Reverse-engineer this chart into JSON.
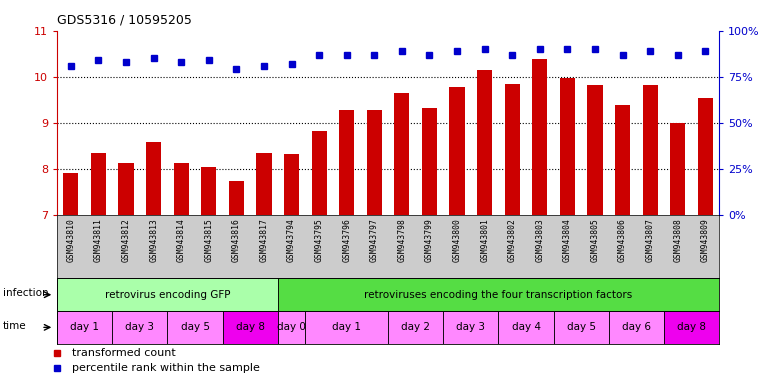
{
  "title": "GDS5316 / 10595205",
  "samples": [
    "GSM943810",
    "GSM943811",
    "GSM943812",
    "GSM943813",
    "GSM943814",
    "GSM943815",
    "GSM943816",
    "GSM943817",
    "GSM943794",
    "GSM943795",
    "GSM943796",
    "GSM943797",
    "GSM943798",
    "GSM943799",
    "GSM943800",
    "GSM943801",
    "GSM943802",
    "GSM943803",
    "GSM943804",
    "GSM943805",
    "GSM943806",
    "GSM943807",
    "GSM943808",
    "GSM943809"
  ],
  "transformed_count": [
    7.92,
    8.35,
    8.12,
    8.58,
    8.12,
    8.04,
    7.73,
    8.35,
    8.32,
    8.82,
    9.28,
    9.28,
    9.65,
    9.32,
    9.78,
    10.15,
    9.85,
    10.38,
    9.98,
    9.83,
    9.38,
    9.83,
    8.99,
    9.55
  ],
  "percentile_rank_pct": [
    81,
    84,
    83,
    85,
    83,
    84,
    79,
    81,
    82,
    87,
    87,
    87,
    89,
    87,
    89,
    90,
    87,
    90,
    90,
    90,
    87,
    89,
    87,
    89
  ],
  "bar_color": "#cc0000",
  "dot_color": "#0000cc",
  "ylim_left": [
    7,
    11
  ],
  "yticks_left": [
    7,
    8,
    9,
    10,
    11
  ],
  "ylim_right": [
    0,
    100
  ],
  "yticks_right": [
    0,
    25,
    50,
    75,
    100
  ],
  "ytick_right_labels": [
    "0%",
    "25%",
    "50%",
    "75%",
    "100%"
  ],
  "grid_values": [
    8,
    9,
    10
  ],
  "infection_groups": [
    {
      "label": "retrovirus encoding GFP",
      "start": 0,
      "end": 8,
      "color": "#aaffaa"
    },
    {
      "label": "retroviruses encoding the four transcription factors",
      "start": 8,
      "end": 24,
      "color": "#55dd44"
    }
  ],
  "time_groups": [
    {
      "label": "day 1",
      "start": 0,
      "end": 2,
      "color": "#ff88ff"
    },
    {
      "label": "day 3",
      "start": 2,
      "end": 4,
      "color": "#ff88ff"
    },
    {
      "label": "day 5",
      "start": 4,
      "end": 6,
      "color": "#ff88ff"
    },
    {
      "label": "day 8",
      "start": 6,
      "end": 8,
      "color": "#ee00ee"
    },
    {
      "label": "day 0",
      "start": 8,
      "end": 9,
      "color": "#ff88ff"
    },
    {
      "label": "day 1",
      "start": 9,
      "end": 12,
      "color": "#ff88ff"
    },
    {
      "label": "day 2",
      "start": 12,
      "end": 14,
      "color": "#ff88ff"
    },
    {
      "label": "day 3",
      "start": 14,
      "end": 16,
      "color": "#ff88ff"
    },
    {
      "label": "day 4",
      "start": 16,
      "end": 18,
      "color": "#ff88ff"
    },
    {
      "label": "day 5",
      "start": 18,
      "end": 20,
      "color": "#ff88ff"
    },
    {
      "label": "day 6",
      "start": 20,
      "end": 22,
      "color": "#ff88ff"
    },
    {
      "label": "day 8",
      "start": 22,
      "end": 24,
      "color": "#ee00ee"
    }
  ],
  "bg_color": "#ffffff",
  "sample_label_bg": "#cccccc",
  "legend_red_label": "transformed count",
  "legend_blue_label": "percentile rank within the sample",
  "infection_label": "infection",
  "time_label": "time"
}
